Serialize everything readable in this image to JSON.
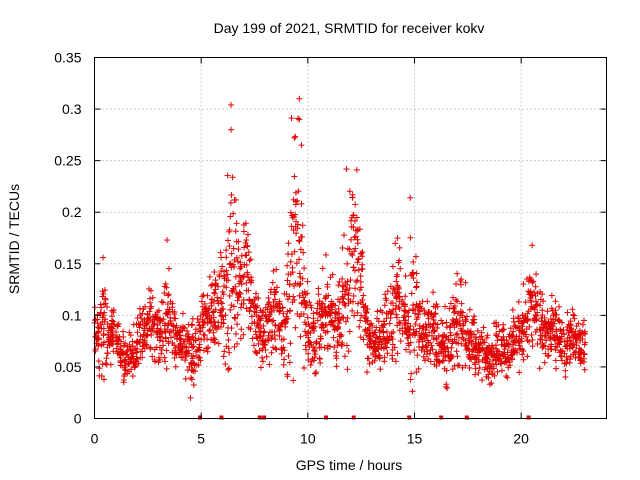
{
  "chart_data": {
    "type": "scatter",
    "title": "Day 199 of 2021, SRMTID for receiver kokv",
    "xlabel": "GPS time / hours",
    "ylabel": "SRMTID / TECUs",
    "xlim": [
      0,
      24
    ],
    "ylim": [
      0,
      0.35
    ],
    "xticks": [
      0,
      5,
      10,
      15,
      20
    ],
    "xtick_labels": [
      "0",
      "5",
      "10",
      "15",
      "20"
    ],
    "yticks": [
      0,
      0.05,
      0.1,
      0.15,
      0.2,
      0.25,
      0.3,
      0.35
    ],
    "ytick_labels": [
      "0",
      "0.05",
      "0.1",
      "0.15",
      "0.2",
      "0.25",
      "0.3",
      "0.35"
    ],
    "grid": true,
    "marker": "plus",
    "color": "#e00000",
    "series": [
      {
        "name": "SRMTID",
        "x": [
          0.0,
          0.2,
          0.4,
          0.6,
          0.8,
          1.0,
          1.2,
          1.4,
          1.6,
          1.8,
          2.0,
          2.2,
          2.4,
          2.6,
          2.8,
          3.0,
          3.2,
          3.4,
          3.6,
          3.8,
          4.0,
          4.2,
          4.4,
          4.6,
          4.8,
          5.0,
          5.2,
          5.4,
          5.6,
          5.8,
          6.0,
          6.2,
          6.4,
          6.6,
          6.8,
          7.0,
          7.2,
          7.4,
          7.6,
          7.8,
          8.0,
          8.2,
          8.4,
          8.6,
          8.8,
          9.0,
          9.2,
          9.4,
          9.6,
          9.8,
          10.0,
          10.2,
          10.4,
          10.6,
          10.8,
          11.0,
          11.2,
          11.4,
          11.6,
          11.8,
          12.0,
          12.2,
          12.4,
          12.6,
          12.8,
          13.0,
          13.2,
          13.4,
          13.6,
          13.8,
          14.0,
          14.2,
          14.4,
          14.6,
          14.8,
          15.0,
          15.2,
          15.4,
          15.6,
          15.8,
          16.0,
          16.2,
          16.4,
          16.6,
          16.8,
          17.0,
          17.2,
          17.4,
          17.6,
          17.8,
          18.0,
          18.2,
          18.4,
          18.6,
          18.8,
          19.0,
          19.2,
          19.4,
          19.6,
          19.8,
          20.0,
          20.2,
          20.4,
          20.6,
          20.8,
          21.0,
          21.2,
          21.4,
          21.6,
          21.8,
          22.0,
          22.2,
          22.4,
          22.6,
          22.8
        ],
        "y_center": [
          0.085,
          0.08,
          0.09,
          0.075,
          0.085,
          0.07,
          0.06,
          0.055,
          0.06,
          0.065,
          0.075,
          0.085,
          0.09,
          0.1,
          0.09,
          0.085,
          0.095,
          0.1,
          0.09,
          0.08,
          0.075,
          0.065,
          0.06,
          0.065,
          0.08,
          0.09,
          0.095,
          0.1,
          0.105,
          0.11,
          0.12,
          0.14,
          0.15,
          0.14,
          0.13,
          0.15,
          0.12,
          0.1,
          0.085,
          0.075,
          0.09,
          0.1,
          0.095,
          0.085,
          0.08,
          0.11,
          0.16,
          0.18,
          0.14,
          0.1,
          0.085,
          0.08,
          0.09,
          0.1,
          0.11,
          0.1,
          0.09,
          0.095,
          0.11,
          0.14,
          0.16,
          0.15,
          0.12,
          0.09,
          0.075,
          0.07,
          0.075,
          0.085,
          0.09,
          0.1,
          0.11,
          0.12,
          0.1,
          0.085,
          0.11,
          0.1,
          0.085,
          0.08,
          0.085,
          0.09,
          0.08,
          0.07,
          0.065,
          0.07,
          0.09,
          0.1,
          0.09,
          0.08,
          0.075,
          0.07,
          0.065,
          0.06,
          0.06,
          0.065,
          0.07,
          0.07,
          0.065,
          0.07,
          0.075,
          0.08,
          0.09,
          0.1,
          0.11,
          0.1,
          0.09,
          0.085,
          0.08,
          0.085,
          0.08,
          0.075,
          0.07,
          0.075,
          0.08,
          0.075,
          0.07
        ],
        "y_spread": [
          0.02,
          0.035,
          0.04,
          0.025,
          0.02,
          0.02,
          0.02,
          0.015,
          0.015,
          0.02,
          0.025,
          0.025,
          0.025,
          0.03,
          0.025,
          0.03,
          0.04,
          0.035,
          0.025,
          0.02,
          0.02,
          0.02,
          0.025,
          0.025,
          0.025,
          0.025,
          0.025,
          0.025,
          0.03,
          0.04,
          0.06,
          0.08,
          0.075,
          0.05,
          0.045,
          0.04,
          0.035,
          0.03,
          0.025,
          0.025,
          0.03,
          0.035,
          0.03,
          0.025,
          0.03,
          0.06,
          0.09,
          0.1,
          0.06,
          0.035,
          0.03,
          0.025,
          0.03,
          0.04,
          0.04,
          0.03,
          0.03,
          0.035,
          0.05,
          0.07,
          0.07,
          0.06,
          0.04,
          0.03,
          0.02,
          0.015,
          0.02,
          0.02,
          0.03,
          0.035,
          0.04,
          0.04,
          0.03,
          0.025,
          0.06,
          0.04,
          0.025,
          0.02,
          0.025,
          0.03,
          0.03,
          0.025,
          0.03,
          0.03,
          0.035,
          0.035,
          0.03,
          0.025,
          0.02,
          0.02,
          0.02,
          0.02,
          0.02,
          0.02,
          0.02,
          0.02,
          0.02,
          0.02,
          0.02,
          0.025,
          0.03,
          0.035,
          0.04,
          0.03,
          0.025,
          0.025,
          0.02,
          0.025,
          0.025,
          0.02,
          0.02,
          0.025,
          0.025,
          0.02,
          0.02
        ],
        "peaks": [
          {
            "x": 6.4,
            "y": 0.304
          },
          {
            "x": 6.4,
            "y": 0.28
          },
          {
            "x": 9.6,
            "y": 0.31
          },
          {
            "x": 9.6,
            "y": 0.29
          },
          {
            "x": 9.7,
            "y": 0.265
          },
          {
            "x": 12.3,
            "y": 0.241
          },
          {
            "x": 14.8,
            "y": 0.214
          },
          {
            "x": 3.4,
            "y": 0.173
          },
          {
            "x": 0.4,
            "y": 0.156
          },
          {
            "x": 20.7,
            "y": 0.14
          },
          {
            "x": 4.5,
            "y": 0.02
          }
        ]
      }
    ],
    "zero_markers_x": [
      4.95,
      5.95,
      7.75,
      7.95,
      10.85,
      12.15,
      14.75,
      16.25,
      17.45,
      20.35
    ]
  }
}
